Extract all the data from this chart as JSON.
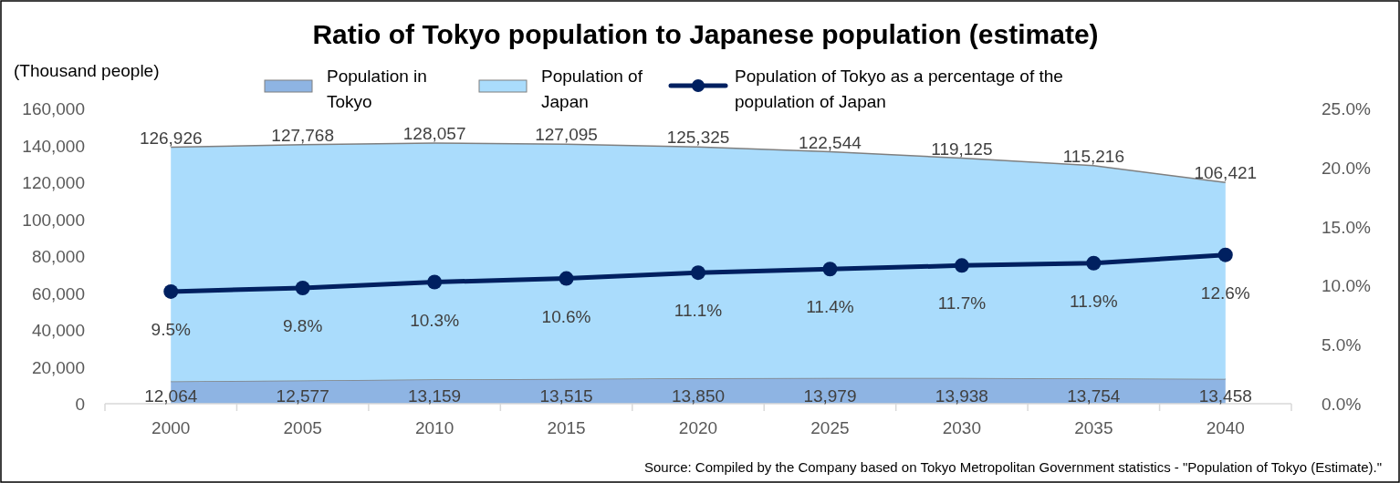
{
  "chart_data": {
    "type": "area",
    "title": "Ratio of Tokyo population to Japanese population (estimate)",
    "ylabel": "(Thousand people)",
    "categories": [
      "2000",
      "2005",
      "2010",
      "2015",
      "2020",
      "2025",
      "2030",
      "2035",
      "2040"
    ],
    "stacked": true,
    "series": [
      {
        "name": "Population in Tokyo",
        "type": "area",
        "color": "#8eb4e3",
        "values": [
          12064,
          12577,
          13159,
          13515,
          13850,
          13979,
          13938,
          13754,
          13458
        ],
        "value_labels": [
          "12,064",
          "12,577",
          "13,159",
          "13,515",
          "13,850",
          "13,979",
          "13,938",
          "13,754",
          "13,458"
        ]
      },
      {
        "name": "Population of Japan",
        "type": "area",
        "color": "#aadcfc",
        "values": [
          126926,
          127768,
          128057,
          127095,
          125325,
          122544,
          119125,
          115216,
          106421
        ],
        "value_labels": [
          "126,926",
          "127,768",
          "128,057",
          "127,095",
          "125,325",
          "122,544",
          "119,125",
          "115,216",
          "106,421"
        ]
      },
      {
        "name": "Population of Tokyo as a percentage of the population of Japan",
        "type": "line",
        "axis": "y2",
        "color": "#002060",
        "marker": "circle",
        "values": [
          9.5,
          9.8,
          10.3,
          10.6,
          11.1,
          11.4,
          11.7,
          11.9,
          12.6
        ],
        "value_labels": [
          "9.5%",
          "9.8%",
          "10.3%",
          "10.6%",
          "11.1%",
          "11.4%",
          "11.7%",
          "11.9%",
          "12.6%"
        ]
      }
    ],
    "ylim": [
      0,
      160000
    ],
    "yticks": [
      0,
      {
        "value": 20000,
        "label": "20,000"
      },
      {
        "value": 40000,
        "label": "40,000"
      },
      {
        "value": 60000,
        "label": "60,000"
      },
      {
        "value": 80000,
        "label": "80,000"
      },
      {
        "value": 100000,
        "label": "100,000"
      },
      {
        "value": 120000,
        "label": "120,000"
      },
      {
        "value": 140000,
        "label": "140,000"
      },
      {
        "value": 160000,
        "label": "160,000"
      }
    ],
    "y2lim": [
      0,
      25
    ],
    "y2ticks": [
      {
        "value": 0,
        "label": "0.0%"
      },
      {
        "value": 5,
        "label": "5.0%"
      },
      {
        "value": 10,
        "label": "10.0%"
      },
      {
        "value": 15,
        "label": "15.0%"
      },
      {
        "value": 20,
        "label": "20.0%"
      },
      {
        "value": 25,
        "label": "25.0%"
      }
    ],
    "legend": "top",
    "grid": false,
    "annotations": [
      "Source: Compiled by the Company based on Tokyo Metropolitan Government statistics - \"Population of Tokyo (Estimate).\""
    ]
  }
}
